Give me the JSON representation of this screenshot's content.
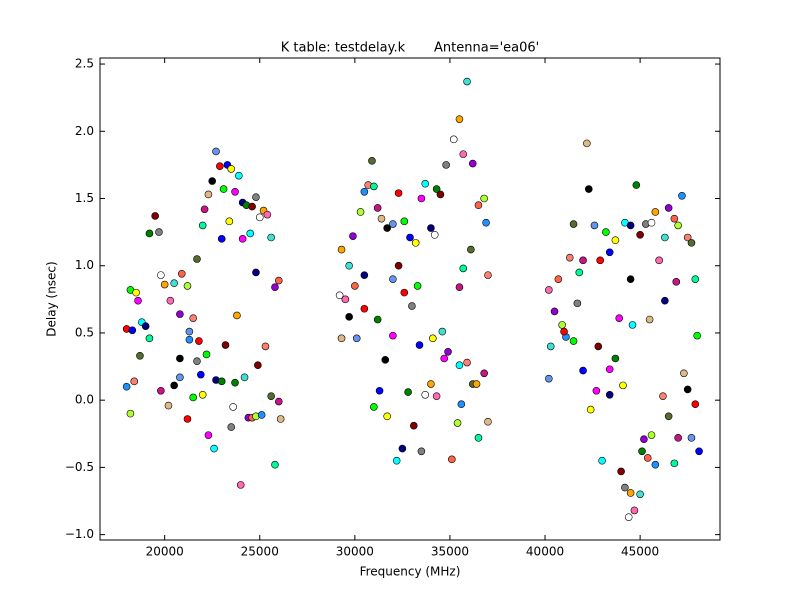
{
  "chart_data": {
    "type": "scatter",
    "title": "K table: testdelay.k       Antenna='ea06'",
    "x_label": "Frequency (MHz)",
    "y_label": "Delay (nsec)",
    "x": [
      18000,
      18200,
      18300,
      18500,
      18600,
      18800,
      19000,
      19200,
      19500,
      19700,
      19800,
      20000,
      20300,
      20500,
      20800,
      20900,
      21200,
      21300,
      21500,
      21700,
      22000,
      22100,
      22300,
      22500,
      22700,
      22900,
      23100,
      23300,
      23500,
      23700,
      23900,
      24100,
      24300,
      24600,
      24800,
      25000,
      25200,
      25400,
      25600,
      25800,
      26000,
      18200,
      18000,
      18400,
      18700,
      19200,
      19800,
      20200,
      20500,
      20800,
      21200,
      21500,
      21900,
      22000,
      22300,
      22600,
      22700,
      23000,
      23200,
      23500,
      23600,
      23800,
      24000,
      24200,
      24400,
      24600,
      24800,
      25100,
      25300,
      25600,
      25800,
      26000,
      26100,
      20800,
      21300,
      21800,
      22200,
      23000,
      23400,
      24100,
      24500,
      24800,
      23700,
      24900,
      21700,
      29200,
      29300,
      29500,
      29700,
      29900,
      30000,
      30300,
      30500,
      30700,
      30900,
      31000,
      31200,
      31400,
      31700,
      32000,
      32300,
      32600,
      32900,
      33200,
      33500,
      33700,
      34000,
      34300,
      34500,
      34800,
      35200,
      35500,
      35700,
      35900,
      36200,
      36500,
      36800,
      36900,
      37000,
      36100,
      35700,
      35500,
      29300,
      29700,
      30100,
      30500,
      31000,
      31300,
      31700,
      32000,
      32200,
      32500,
      32800,
      33100,
      33500,
      33700,
      34000,
      34300,
      34600,
      34900,
      35100,
      35400,
      35600,
      35900,
      36200,
      36500,
      36800,
      37000,
      31600,
      32000,
      32600,
      33300,
      33400,
      34100,
      34700,
      35500,
      30500,
      31200,
      32300,
      33000,
      34200,
      36400,
      40200,
      40300,
      40500,
      40700,
      40900,
      41100,
      41300,
      41500,
      41800,
      42000,
      42200,
      42300,
      42600,
      42900,
      43200,
      43400,
      43700,
      43900,
      44200,
      44500,
      44800,
      45000,
      45300,
      45600,
      45800,
      46000,
      46300,
      46500,
      46800,
      47000,
      47200,
      47500,
      47700,
      47900,
      46900,
      45500,
      44500,
      40200,
      41000,
      41500,
      42000,
      42400,
      42700,
      43000,
      43400,
      43700,
      44000,
      44200,
      44400,
      44500,
      44700,
      45000,
      45200,
      45400,
      45600,
      45800,
      46200,
      46500,
      46800,
      47000,
      47300,
      47500,
      47700,
      47900,
      48000,
      48100,
      44100,
      43400,
      44600,
      46300,
      45100,
      42800,
      41700
    ],
    "values": [
      0.53,
      0.82,
      0.52,
      0.8,
      0.74,
      0.58,
      0.55,
      1.24,
      1.37,
      1.25,
      0.93,
      0.86,
      0.74,
      0.87,
      0.64,
      0.94,
      0.85,
      0.45,
      0.61,
      1.05,
      1.3,
      1.42,
      1.53,
      1.63,
      1.85,
      1.74,
      1.57,
      1.75,
      1.72,
      1.55,
      1.67,
      1.47,
      1.45,
      1.44,
      1.51,
      1.36,
      1.41,
      1.38,
      1.21,
      0.84,
      0.89,
      -0.1,
      0.1,
      0.14,
      0.33,
      0.46,
      0.07,
      -0.04,
      0.11,
      0.17,
      -0.14,
      0.02,
      0.19,
      0.04,
      -0.26,
      -0.36,
      0.15,
      0.14,
      0.41,
      -0.2,
      -0.05,
      0.63,
      -0.63,
      0.17,
      -0.13,
      -0.13,
      -0.12,
      -0.11,
      0.4,
      0.03,
      -0.48,
      -0.01,
      -0.14,
      0.31,
      0.51,
      0.44,
      0.34,
      1.2,
      1.33,
      1.2,
      1.24,
      0.95,
      0.13,
      0.26,
      0.29,
      0.78,
      1.12,
      0.75,
      1.0,
      1.22,
      0.85,
      1.4,
      1.55,
      1.6,
      1.78,
      1.59,
      1.43,
      1.35,
      1.28,
      1.31,
      1.54,
      1.33,
      1.21,
      1.17,
      1.5,
      1.61,
      1.28,
      1.57,
      1.53,
      1.75,
      1.94,
      2.09,
      1.83,
      2.37,
      1.76,
      1.45,
      1.5,
      1.32,
      0.93,
      1.12,
      0.98,
      0.84,
      0.46,
      0.62,
      0.46,
      0.68,
      -0.05,
      0.07,
      -0.12,
      0.48,
      -0.45,
      -0.36,
      0.06,
      -0.19,
      -0.38,
      0.04,
      0.12,
      0.03,
      0.51,
      0.36,
      -0.44,
      -0.17,
      -0.03,
      0.28,
      0.12,
      -0.28,
      0.2,
      -0.16,
      0.3,
      0.9,
      0.8,
      0.85,
      0.41,
      0.46,
      0.31,
      0.26,
      0.93,
      0.6,
      1.0,
      0.7,
      1.23,
      0.12,
      0.82,
      0.4,
      0.66,
      0.9,
      0.56,
      0.47,
      1.06,
      1.31,
      0.95,
      1.04,
      1.91,
      1.57,
      1.3,
      1.04,
      1.25,
      1.1,
      1.19,
      0.61,
      1.32,
      1.3,
      1.6,
      1.23,
      1.31,
      1.32,
      1.4,
      1.04,
      1.21,
      1.43,
      1.35,
      1.3,
      1.52,
      1.21,
      1.17,
      0.9,
      0.88,
      0.6,
      0.9,
      0.16,
      0.51,
      0.44,
      0.22,
      -0.07,
      0.07,
      -0.45,
      0.04,
      0.31,
      -0.53,
      -0.65,
      -0.87,
      -0.69,
      -0.82,
      -0.7,
      -0.29,
      -0.43,
      -0.26,
      -0.48,
      0.03,
      -0.12,
      -0.47,
      -0.28,
      0.2,
      0.08,
      -0.28,
      -0.03,
      0.48,
      -0.38,
      0.11,
      0.23,
      0.56,
      0.74,
      -0.38,
      0.4,
      0.72
    ],
    "colors": [
      "#ff0000",
      "#00ff00",
      "#0000ff",
      "#ffff00",
      "#ff00ff",
      "#00ffff",
      "#000080",
      "#008000",
      "#800000",
      "#808080",
      "#ffffff",
      "#ffa500",
      "#ff69b4",
      "#40e0d0",
      "#9400d3",
      "#ff6347",
      "#adff2f",
      "#1e90ff",
      "#fa8072",
      "#556b2f",
      "#00fa9a",
      "#c71585",
      "#deb887",
      "#000000",
      "#6495ed"
    ],
    "xlim": [
      16600,
      49200
    ],
    "xticks": [
      20000,
      25000,
      30000,
      35000,
      40000,
      45000
    ],
    "ylim": [
      -1.04,
      2.545
    ],
    "yticks": [
      {
        "value": -1,
        "label": "−1.0"
      },
      {
        "value": -0.5,
        "label": "−0.5"
      },
      {
        "value": 0,
        "label": "0.0"
      },
      0.5,
      {
        "value": 1,
        "label": "1.0"
      },
      1.5,
      {
        "value": 2,
        "label": "2.0"
      },
      2.5
    ],
    "grid": false
  }
}
